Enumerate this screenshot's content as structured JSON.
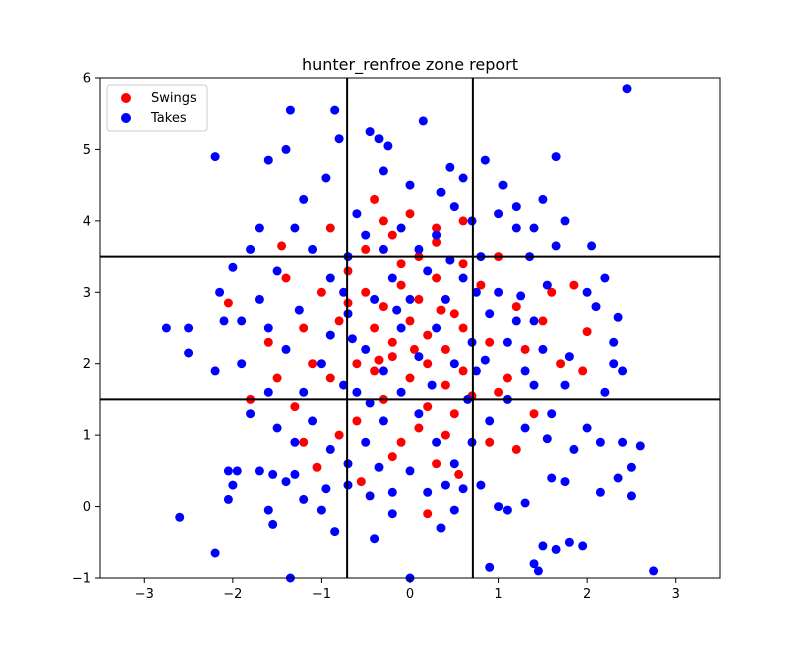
{
  "chart_data": {
    "type": "scatter",
    "title": "hunter_renfroe zone report",
    "xlabel": "",
    "ylabel": "",
    "xlim": [
      -3.5,
      3.5
    ],
    "ylim": [
      -1,
      6
    ],
    "xticks": [
      -3,
      -2,
      -1,
      0,
      1,
      2,
      3
    ],
    "yticks": [
      -1,
      0,
      1,
      2,
      3,
      4,
      5,
      6
    ],
    "grid": false,
    "legend_position": "upper-left",
    "strike_zone": {
      "x": [
        -0.71,
        0.71
      ],
      "y": [
        1.5,
        3.5
      ]
    },
    "series": [
      {
        "name": "Swings",
        "color": "#ff0000",
        "points": [
          [
            -0.5,
            3.0
          ],
          [
            -0.3,
            2.8
          ],
          [
            -0.1,
            3.1
          ],
          [
            0.1,
            2.9
          ],
          [
            0.3,
            3.2
          ],
          [
            0.5,
            2.7
          ],
          [
            -0.4,
            2.5
          ],
          [
            -0.2,
            2.3
          ],
          [
            0.0,
            2.6
          ],
          [
            0.2,
            2.4
          ],
          [
            0.4,
            2.2
          ],
          [
            0.6,
            2.5
          ],
          [
            -0.6,
            2.0
          ],
          [
            -0.4,
            1.9
          ],
          [
            -0.2,
            2.1
          ],
          [
            0.0,
            1.8
          ],
          [
            0.2,
            2.0
          ],
          [
            0.4,
            1.7
          ],
          [
            0.6,
            1.9
          ],
          [
            -0.5,
            3.6
          ],
          [
            -0.2,
            3.8
          ],
          [
            0.1,
            3.5
          ],
          [
            0.3,
            3.7
          ],
          [
            0.6,
            3.4
          ],
          [
            -0.3,
            4.0
          ],
          [
            0.0,
            4.1
          ],
          [
            0.3,
            3.9
          ],
          [
            -0.7,
            3.3
          ],
          [
            0.8,
            3.1
          ],
          [
            -0.8,
            2.6
          ],
          [
            0.9,
            2.3
          ],
          [
            -0.9,
            1.8
          ],
          [
            1.0,
            1.6
          ],
          [
            -0.3,
            1.5
          ],
          [
            0.2,
            1.4
          ],
          [
            0.5,
            1.3
          ],
          [
            -0.6,
            1.2
          ],
          [
            0.1,
            1.1
          ],
          [
            -0.1,
            0.9
          ],
          [
            0.4,
            1.0
          ],
          [
            -1.0,
            3.0
          ],
          [
            -1.2,
            2.5
          ],
          [
            1.2,
            2.8
          ],
          [
            1.3,
            2.2
          ],
          [
            -1.1,
            2.0
          ],
          [
            1.1,
            1.8
          ],
          [
            -1.4,
            3.2
          ],
          [
            1.5,
            2.6
          ],
          [
            -0.2,
            0.7
          ],
          [
            0.3,
            0.6
          ],
          [
            -2.05,
            2.85
          ],
          [
            -1.05,
            0.55
          ],
          [
            0.2,
            -0.1
          ],
          [
            2.0,
            2.45
          ],
          [
            1.95,
            1.9
          ],
          [
            -1.45,
            3.65
          ],
          [
            -0.4,
            4.3
          ],
          [
            0.6,
            4.0
          ],
          [
            -0.9,
            3.9
          ],
          [
            1.0,
            3.5
          ],
          [
            -1.3,
            1.4
          ],
          [
            1.4,
            1.3
          ],
          [
            -0.8,
            1.0
          ],
          [
            0.9,
            0.9
          ],
          [
            -1.6,
            2.3
          ],
          [
            1.7,
            2.0
          ],
          [
            -1.5,
            1.8
          ],
          [
            1.6,
            3.0
          ],
          [
            -0.1,
            3.4
          ],
          [
            0.05,
            2.2
          ],
          [
            -0.35,
            2.05
          ],
          [
            0.35,
            2.75
          ],
          [
            0.7,
            1.55
          ],
          [
            -0.7,
            2.85
          ],
          [
            1.85,
            3.1
          ],
          [
            -1.8,
            1.5
          ],
          [
            0.55,
            0.45
          ],
          [
            -0.55,
            0.35
          ],
          [
            1.2,
            0.8
          ],
          [
            -1.2,
            0.9
          ]
        ]
      },
      {
        "name": "Takes",
        "color": "#0000ff",
        "points": [
          [
            -2.2,
            4.9
          ],
          [
            -1.6,
            4.85
          ],
          [
            -1.4,
            5.0
          ],
          [
            -1.35,
            5.55
          ],
          [
            -0.85,
            5.55
          ],
          [
            -0.8,
            5.15
          ],
          [
            -0.45,
            5.25
          ],
          [
            -0.35,
            5.15
          ],
          [
            -0.25,
            5.05
          ],
          [
            0.15,
            5.4
          ],
          [
            0.45,
            4.75
          ],
          [
            0.85,
            4.85
          ],
          [
            1.65,
            4.9
          ],
          [
            2.45,
            5.85
          ],
          [
            -0.95,
            4.6
          ],
          [
            -0.3,
            4.7
          ],
          [
            0.35,
            4.4
          ],
          [
            1.05,
            4.5
          ],
          [
            1.5,
            4.3
          ],
          [
            -1.7,
            3.9
          ],
          [
            -2.0,
            3.35
          ],
          [
            -2.15,
            3.0
          ],
          [
            -2.5,
            2.5
          ],
          [
            -2.75,
            2.5
          ],
          [
            -2.5,
            2.15
          ],
          [
            -2.1,
            2.6
          ],
          [
            -2.2,
            1.9
          ],
          [
            -1.9,
            2.0
          ],
          [
            2.3,
            2.3
          ],
          [
            2.3,
            2.0
          ],
          [
            2.35,
            2.65
          ],
          [
            2.2,
            3.2
          ],
          [
            2.05,
            3.65
          ],
          [
            1.75,
            4.0
          ],
          [
            1.65,
            3.65
          ],
          [
            2.0,
            3.0
          ],
          [
            2.1,
            2.8
          ],
          [
            2.2,
            1.6
          ],
          [
            2.4,
            1.9
          ],
          [
            2.0,
            1.1
          ],
          [
            2.15,
            0.9
          ],
          [
            2.4,
            0.9
          ],
          [
            2.6,
            0.85
          ],
          [
            2.5,
            0.55
          ],
          [
            2.35,
            0.4
          ],
          [
            2.5,
            0.15
          ],
          [
            2.15,
            0.2
          ],
          [
            2.75,
            -0.9
          ],
          [
            -2.6,
            -0.15
          ],
          [
            -2.2,
            -0.65
          ],
          [
            -2.05,
            0.1
          ],
          [
            -2.0,
            0.3
          ],
          [
            -2.05,
            0.5
          ],
          [
            -1.95,
            0.5
          ],
          [
            -1.7,
            0.5
          ],
          [
            -1.55,
            0.45
          ],
          [
            -1.4,
            0.35
          ],
          [
            -1.3,
            0.45
          ],
          [
            -1.6,
            -0.05
          ],
          [
            -1.55,
            -0.25
          ],
          [
            -1.35,
            -1.0
          ],
          [
            -1.0,
            -0.05
          ],
          [
            -0.85,
            -0.35
          ],
          [
            -0.4,
            -0.45
          ],
          [
            0.0,
            -1.0
          ],
          [
            0.35,
            -0.3
          ],
          [
            0.9,
            -0.85
          ],
          [
            1.4,
            -0.8
          ],
          [
            1.45,
            -0.9
          ],
          [
            1.5,
            -0.55
          ],
          [
            1.8,
            -0.5
          ],
          [
            1.65,
            -0.6
          ],
          [
            1.95,
            -0.55
          ],
          [
            1.0,
            0.0
          ],
          [
            1.1,
            -0.05
          ],
          [
            1.3,
            0.05
          ],
          [
            0.8,
            0.3
          ],
          [
            0.6,
            0.25
          ],
          [
            0.4,
            0.3
          ],
          [
            0.2,
            0.2
          ],
          [
            -0.2,
            0.2
          ],
          [
            -0.45,
            0.15
          ],
          [
            -0.7,
            0.3
          ],
          [
            -0.95,
            0.25
          ],
          [
            -1.2,
            0.1
          ],
          [
            1.6,
            0.4
          ],
          [
            1.75,
            0.35
          ],
          [
            1.85,
            0.8
          ],
          [
            1.55,
            0.95
          ],
          [
            1.3,
            1.1
          ],
          [
            1.75,
            1.7
          ],
          [
            1.8,
            2.1
          ],
          [
            1.5,
            2.2
          ],
          [
            1.4,
            2.6
          ],
          [
            1.55,
            3.1
          ],
          [
            1.35,
            3.5
          ],
          [
            1.2,
            3.9
          ],
          [
            1.0,
            4.1
          ],
          [
            0.7,
            4.0
          ],
          [
            0.5,
            4.2
          ],
          [
            0.3,
            3.8
          ],
          [
            0.1,
            3.6
          ],
          [
            -0.1,
            3.9
          ],
          [
            -0.3,
            3.6
          ],
          [
            -0.5,
            3.8
          ],
          [
            -0.7,
            3.5
          ],
          [
            -0.9,
            3.2
          ],
          [
            -1.1,
            3.6
          ],
          [
            -1.3,
            3.9
          ],
          [
            -1.5,
            3.3
          ],
          [
            -1.7,
            2.9
          ],
          [
            -1.6,
            2.5
          ],
          [
            -1.4,
            2.2
          ],
          [
            -1.6,
            1.6
          ],
          [
            -1.8,
            1.3
          ],
          [
            -1.5,
            1.1
          ],
          [
            -1.3,
            0.9
          ],
          [
            -1.1,
            1.2
          ],
          [
            -1.2,
            1.6
          ],
          [
            -1.0,
            2.0
          ],
          [
            -0.9,
            2.4
          ],
          [
            -0.7,
            2.7
          ],
          [
            -0.5,
            2.2
          ],
          [
            -0.3,
            1.9
          ],
          [
            -0.1,
            2.5
          ],
          [
            0.1,
            2.1
          ],
          [
            0.3,
            2.5
          ],
          [
            0.5,
            2.0
          ],
          [
            0.7,
            2.3
          ],
          [
            0.9,
            2.7
          ],
          [
            1.1,
            2.3
          ],
          [
            1.3,
            1.9
          ],
          [
            1.1,
            1.5
          ],
          [
            0.9,
            1.2
          ],
          [
            0.7,
            0.9
          ],
          [
            0.5,
            0.6
          ],
          [
            0.3,
            0.9
          ],
          [
            0.1,
            1.3
          ],
          [
            -0.1,
            1.6
          ],
          [
            -0.3,
            1.2
          ],
          [
            -0.5,
            0.9
          ],
          [
            -0.7,
            0.6
          ],
          [
            -0.9,
            0.8
          ],
          [
            -0.6,
            1.6
          ],
          [
            -0.4,
            2.9
          ],
          [
            -0.2,
            3.2
          ],
          [
            0.0,
            2.9
          ],
          [
            0.2,
            3.3
          ],
          [
            0.4,
            2.9
          ],
          [
            0.6,
            3.2
          ],
          [
            0.8,
            3.5
          ],
          [
            1.0,
            3.0
          ],
          [
            1.2,
            2.6
          ],
          [
            1.4,
            1.7
          ],
          [
            1.6,
            1.3
          ],
          [
            -1.9,
            2.6
          ],
          [
            -1.8,
            3.6
          ],
          [
            -1.2,
            4.3
          ],
          [
            -0.6,
            4.1
          ],
          [
            0.0,
            4.5
          ],
          [
            0.6,
            4.6
          ],
          [
            1.2,
            4.2
          ],
          [
            1.4,
            3.9
          ],
          [
            -0.75,
            3.0
          ],
          [
            0.75,
            1.9
          ],
          [
            -0.75,
            1.7
          ],
          [
            0.75,
            3.0
          ],
          [
            0.0,
            0.5
          ],
          [
            -0.2,
            -0.1
          ],
          [
            0.5,
            -0.05
          ],
          [
            -0.35,
            0.55
          ],
          [
            0.65,
            1.5
          ],
          [
            -0.65,
            2.35
          ],
          [
            0.25,
            1.7
          ],
          [
            -0.15,
            2.75
          ],
          [
            0.45,
            3.45
          ],
          [
            -0.45,
            1.45
          ],
          [
            0.85,
            2.05
          ],
          [
            1.25,
            2.95
          ],
          [
            -1.25,
            2.75
          ]
        ]
      }
    ]
  }
}
